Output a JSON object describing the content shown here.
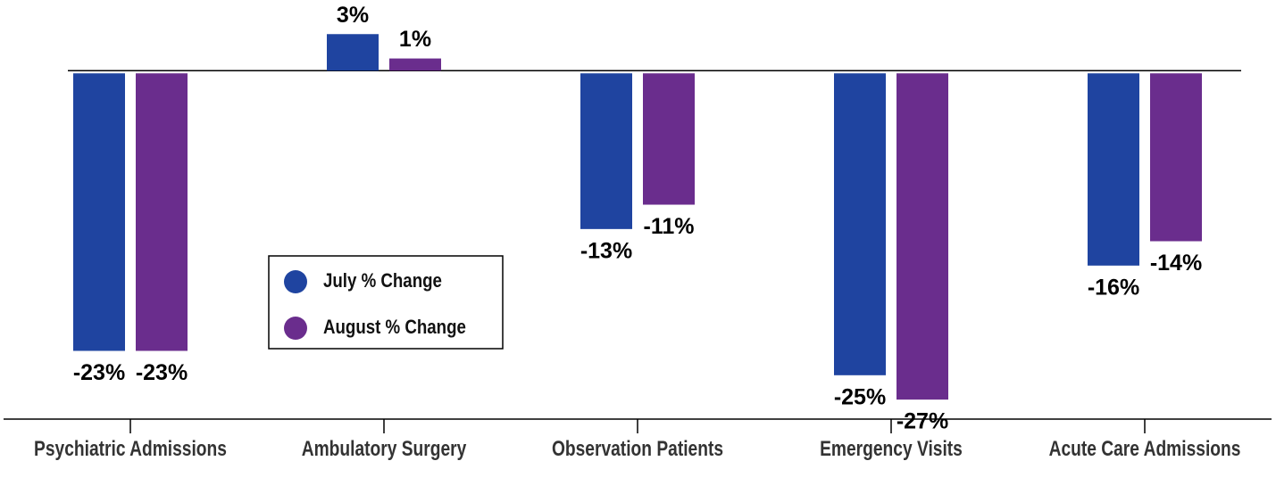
{
  "chart_data": {
    "type": "bar",
    "categories": [
      "Psychiatric Admissions",
      "Ambulatory Surgery",
      "Observation Patients",
      "Emergency Visits",
      "Acute Care Admissions"
    ],
    "series": [
      {
        "name": "July % Change",
        "color": "#1f44a0",
        "values": [
          -23,
          3,
          -13,
          -25,
          -16
        ],
        "value_labels": [
          "-23%",
          "3%",
          "-13%",
          "-25%",
          "-16%"
        ]
      },
      {
        "name": "August % Change",
        "color": "#6a2d8d",
        "values": [
          -23,
          1,
          -11,
          -27,
          -14
        ],
        "value_labels": [
          "-23%",
          "1%",
          "-11%",
          "-27%",
          "-14%"
        ]
      }
    ],
    "ylim": [
      -28.6,
      5.8
    ]
  }
}
